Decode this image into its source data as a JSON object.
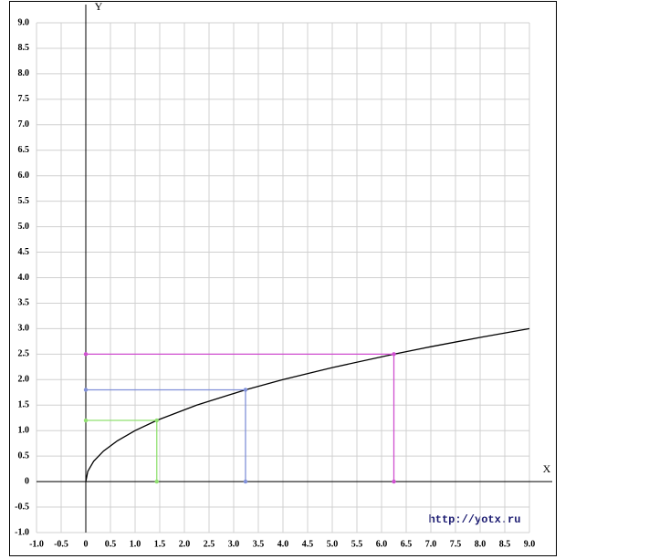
{
  "chart_data": {
    "type": "line",
    "x_label": "X",
    "y_label": "Y",
    "watermark": "http://yotx.ru",
    "x": [
      0,
      0.04,
      0.16,
      0.36,
      0.64,
      1,
      1.44,
      2.25,
      3.24,
      4,
      5,
      6.25,
      7,
      8,
      9
    ],
    "values": [
      0,
      0.2,
      0.4,
      0.6,
      0.8,
      1,
      1.2,
      1.5,
      1.8,
      2,
      2.236,
      2.5,
      2.646,
      2.828,
      3
    ],
    "color": "#000000",
    "markers": {
      "x": [
        1.44,
        3.24,
        6.25
      ],
      "values": [
        1.2,
        1.8,
        2.5
      ],
      "colors": [
        "#90e070",
        "#8090d8",
        "#d050d0"
      ]
    },
    "xlim": [
      -1,
      9
    ],
    "ylim": [
      -1,
      9
    ],
    "grid": true,
    "xticks": [
      {
        "value": -1,
        "label": "-1.0"
      },
      -0.5,
      0,
      0.5,
      {
        "value": 1,
        "label": "1.0"
      },
      1.5,
      {
        "value": 2,
        "label": "2.0"
      },
      2.5,
      {
        "value": 3,
        "label": "3.0"
      },
      3.5,
      {
        "value": 4,
        "label": "4.0"
      },
      4.5,
      {
        "value": 5,
        "label": "5.0"
      },
      5.5,
      {
        "value": 6,
        "label": "6.0"
      },
      6.5,
      {
        "value": 7,
        "label": "7.0"
      },
      7.5,
      {
        "value": 8,
        "label": "8.0"
      },
      8.5,
      {
        "value": 9,
        "label": "9.0"
      }
    ],
    "yticks": [
      {
        "value": -1,
        "label": "-1.0"
      },
      -0.5,
      0,
      0.5,
      {
        "value": 1,
        "label": "1.0"
      },
      1.5,
      {
        "value": 2,
        "label": "2.0"
      },
      2.5,
      {
        "value": 3,
        "label": "3.0"
      },
      3.5,
      {
        "value": 4,
        "label": "4.0"
      },
      4.5,
      {
        "value": 5,
        "label": "5.0"
      },
      5.5,
      {
        "value": 6,
        "label": "6.0"
      },
      6.5,
      {
        "value": 7,
        "label": "7.0"
      },
      7.5,
      {
        "value": 8,
        "label": "8.0"
      },
      8.5,
      {
        "value": 9,
        "label": "9.0"
      }
    ]
  }
}
